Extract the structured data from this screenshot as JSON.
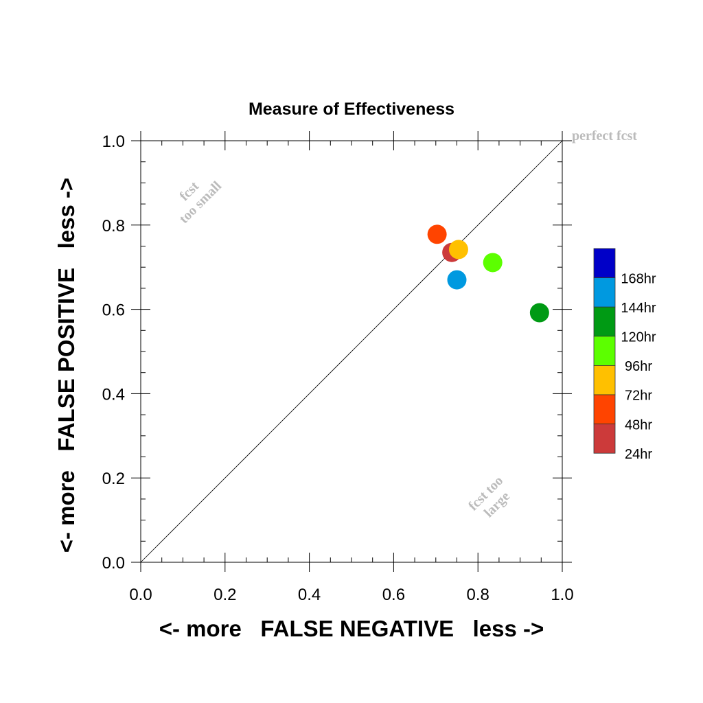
{
  "chart_data": {
    "type": "scatter",
    "title": "Measure of Effectiveness",
    "xlabel": "<- more   FALSE NEGATIVE   less ->",
    "ylabel": "<- more   FALSE POSITIVE   less ->",
    "xlim": [
      0.0,
      1.0
    ],
    "ylim": [
      0.0,
      1.0
    ],
    "x_ticks": [
      "0.0",
      "0.2",
      "0.4",
      "0.6",
      "0.8",
      "1.0"
    ],
    "y_ticks": [
      "0.0",
      "0.2",
      "0.4",
      "0.6",
      "0.8",
      "1.0"
    ],
    "grid": false,
    "diagonal": true,
    "annotations": {
      "perfect": "perfect fcst",
      "small_line1": "fcst",
      "small_line2": "too small",
      "large_line1": "fcst too",
      "large_line2": "large"
    },
    "legend_position": "right",
    "series": [
      {
        "name": "24hr",
        "color": "#cc3a3a",
        "x": 0.738,
        "y": 0.735
      },
      {
        "name": "48hr",
        "color": "#ff4400",
        "x": 0.703,
        "y": 0.778
      },
      {
        "name": "72hr",
        "color": "#ffc000",
        "x": 0.754,
        "y": 0.742
      },
      {
        "name": "96hr",
        "color": "#5cff00",
        "x": 0.835,
        "y": 0.711
      },
      {
        "name": "120hr",
        "color": "#009a14",
        "x": 0.946,
        "y": 0.592
      },
      {
        "name": "144hr",
        "color": "#0099e0",
        "x": 0.75,
        "y": 0.67
      },
      {
        "name": "168hr",
        "color": "#0000c8",
        "x": null,
        "y": null
      }
    ]
  }
}
